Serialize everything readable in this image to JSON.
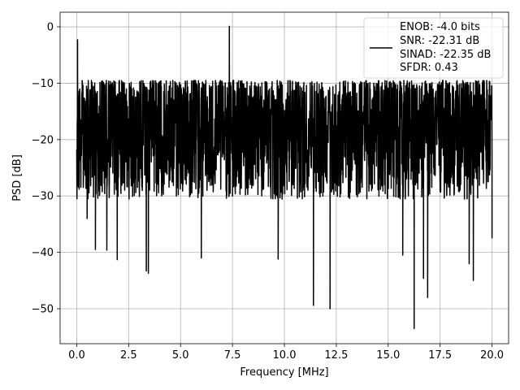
{
  "chart_data": {
    "type": "line",
    "title": "",
    "xlabel": "Frequency [MHz]",
    "ylabel": "PSD [dB]",
    "xlim": [
      -0.8,
      20.8
    ],
    "ylim": [
      -56.2,
      2.6
    ],
    "xticks": [
      0.0,
      2.5,
      5.0,
      7.5,
      10.0,
      12.5,
      15.0,
      17.5,
      20.0
    ],
    "xtick_labels": [
      "0.0",
      "2.5",
      "5.0",
      "7.5",
      "10.0",
      "12.5",
      "15.0",
      "17.5",
      "20.0"
    ],
    "yticks": [
      0,
      -10,
      -20,
      -30,
      -40,
      -50
    ],
    "ytick_labels": [
      "0",
      "−10",
      "−20",
      "−30",
      "−40",
      "−50"
    ],
    "grid": true,
    "legend": {
      "placement": "top-right",
      "lines": [
        "ENOB: -4.0 bits",
        "SNR: -22.31 dB",
        "SINAD: -22.35 dB",
        "SFDR: 0.43"
      ]
    },
    "series": [
      {
        "color": "#000000",
        "noise": {
          "x_start": 0.0,
          "x_end": 20.0,
          "center": -19.0,
          "typical_max": -9.5,
          "typical_min": -30.0
        },
        "points": [
          {
            "x": 0.0,
            "y": -22.0
          },
          {
            "x": 0.04,
            "y": -2.3
          },
          {
            "x": 0.1,
            "y": -15.0
          },
          {
            "x": 0.2,
            "y": -25.0
          },
          {
            "x": 0.5,
            "y": -34.0
          },
          {
            "x": 0.9,
            "y": -39.5
          },
          {
            "x": 1.45,
            "y": -39.6
          },
          {
            "x": 1.95,
            "y": -41.3
          },
          {
            "x": 3.35,
            "y": -43.3
          },
          {
            "x": 3.45,
            "y": -43.7
          },
          {
            "x": 4.9,
            "y": -10.8
          },
          {
            "x": 5.7,
            "y": -9.5
          },
          {
            "x": 6.0,
            "y": -41.0
          },
          {
            "x": 7.35,
            "y": 0.1
          },
          {
            "x": 7.5,
            "y": -30.0
          },
          {
            "x": 9.7,
            "y": -41.2
          },
          {
            "x": 11.4,
            "y": -49.4
          },
          {
            "x": 12.2,
            "y": -50.0
          },
          {
            "x": 15.7,
            "y": -40.5
          },
          {
            "x": 16.25,
            "y": -53.5
          },
          {
            "x": 16.7,
            "y": -44.6
          },
          {
            "x": 16.9,
            "y": -48.0
          },
          {
            "x": 18.9,
            "y": -42.0
          },
          {
            "x": 19.1,
            "y": -45.0
          },
          {
            "x": 20.0,
            "y": -37.5
          }
        ]
      }
    ]
  }
}
